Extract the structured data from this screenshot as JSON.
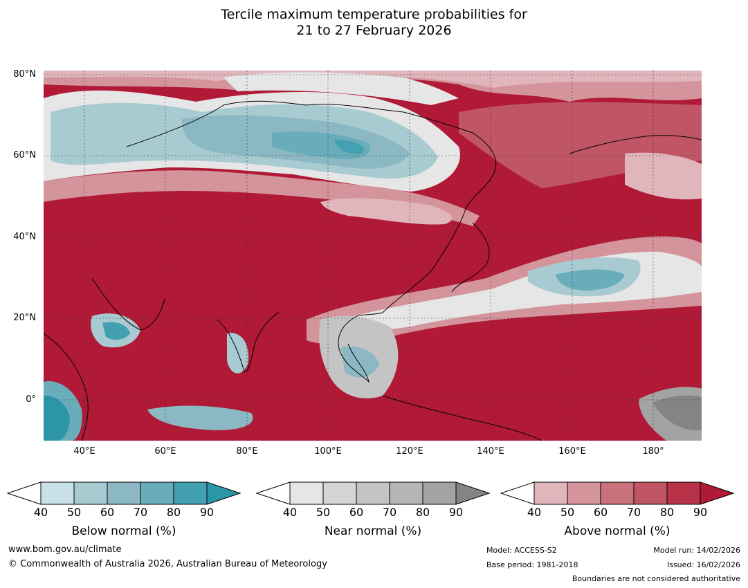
{
  "title_line1": "Tercile maximum temperature probabilities for",
  "title_line2": "21 to 27 February 2026",
  "map": {
    "lon_range": [
      30,
      192
    ],
    "lat_range": [
      -10,
      81
    ],
    "lat_labels": [
      "80°N",
      "60°N",
      "40°N",
      "20°N",
      "0°"
    ],
    "lat_values": [
      80,
      60,
      40,
      20,
      0
    ],
    "lon_labels": [
      "40°E",
      "60°E",
      "80°E",
      "100°E",
      "120°E",
      "140°E",
      "160°E",
      "180°"
    ],
    "lon_values": [
      40,
      60,
      80,
      100,
      120,
      140,
      160,
      180
    ],
    "grid": true
  },
  "colorbars": [
    {
      "label": "Below normal (%)",
      "ticks": [
        "40",
        "50",
        "60",
        "70",
        "80",
        "90"
      ],
      "colors": [
        "#ffffff",
        "#c8e1e7",
        "#a8cad1",
        "#8cb8c4",
        "#6aadba",
        "#43a0b0",
        "#2c96a8"
      ]
    },
    {
      "label": "Near normal (%)",
      "ticks": [
        "40",
        "50",
        "60",
        "70",
        "80",
        "90"
      ],
      "colors": [
        "#ffffff",
        "#e6e6e6",
        "#d5d5d5",
        "#c4c4c4",
        "#b5b5b5",
        "#a3a3a3",
        "#848484"
      ]
    },
    {
      "label": "Above normal (%)",
      "ticks": [
        "40",
        "50",
        "60",
        "70",
        "80",
        "90"
      ],
      "colors": [
        "#ffffff",
        "#e0b6bc",
        "#d4949b",
        "#c9727c",
        "#c05565",
        "#b83348",
        "#b01a37"
      ]
    }
  ],
  "footer": {
    "url": "www.bom.gov.au/climate",
    "copyright": "© Commonwealth of Australia 2026, Australian Bureau of Meteorology",
    "model": "Model: ACCESS-S2",
    "base_period": "Base period: 1981-2018",
    "model_run": "Model run: 14/02/2026",
    "issued": "Issued: 16/02/2026",
    "disclaimer": "Boundaries are not considered authoritative"
  }
}
